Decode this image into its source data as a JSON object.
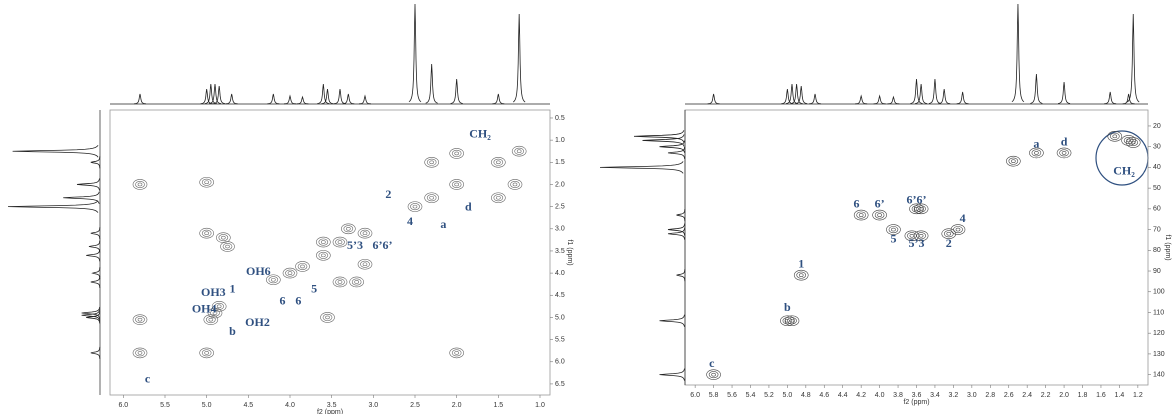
{
  "chart_data": [
    {
      "type": "contour",
      "x_label": "f2 (ppm)",
      "y_label": "f1 (ppm)",
      "xlim": [
        6.16,
        0.88
      ],
      "xticks": [
        {
          "value": 6,
          "label": "6.0"
        },
        5.5,
        {
          "value": 5,
          "label": "5.0"
        },
        4.5,
        {
          "value": 4,
          "label": "4.0"
        },
        3.5,
        {
          "value": 3,
          "label": "3.0"
        },
        2.5,
        {
          "value": 2,
          "label": "2.0"
        },
        1.5,
        {
          "value": 1,
          "label": "1.0"
        }
      ],
      "ylim": [
        0.32,
        6.75
      ],
      "yticks": [
        0.5,
        {
          "value": 1,
          "label": "1.0"
        },
        1.5,
        {
          "value": 2,
          "label": "2.0"
        },
        2.5,
        {
          "value": 3,
          "label": "3.0"
        },
        3.5,
        {
          "value": 4,
          "label": "4.0"
        },
        4.5,
        {
          "value": 5,
          "label": "5.0"
        },
        5.5,
        {
          "value": 6,
          "label": "6.0"
        },
        6.5
      ],
      "peak_color": "#666666",
      "label_color": "#2f5080",
      "peaks": {
        "x": [
          5.8,
          5.8,
          5.8,
          5.0,
          5.0,
          4.95,
          4.9,
          4.85,
          4.2,
          4.0,
          3.85,
          3.6,
          3.4,
          3.1,
          2.5,
          2.3,
          2.0,
          1.5,
          1.25,
          2.3,
          2.0,
          1.3,
          1.5,
          4.8,
          4.75,
          5.0,
          3.1,
          3.2,
          3.4,
          3.55,
          2.0,
          3.3,
          3.6
        ],
        "y": [
          2.0,
          5.05,
          5.8,
          1.95,
          5.8,
          5.05,
          4.9,
          4.75,
          4.15,
          4.0,
          3.85,
          3.6,
          3.3,
          3.1,
          2.5,
          2.3,
          2.0,
          1.5,
          1.25,
          1.5,
          1.3,
          2.0,
          2.3,
          3.2,
          3.4,
          3.1,
          3.8,
          4.2,
          4.2,
          5.0,
          5.8,
          3.0,
          3.3
        ]
      },
      "annotations": [
        {
          "text": "CH₂",
          "x": 1.72,
          "y": 0.88
        },
        {
          "text": "a",
          "x": 2.16,
          "y": 2.92
        },
        {
          "text": "d",
          "x": 1.86,
          "y": 2.53
        },
        {
          "text": "2",
          "x": 2.82,
          "y": 2.24
        },
        {
          "text": "4",
          "x": 2.56,
          "y": 2.85
        },
        {
          "text": "5’3",
          "x": 3.22,
          "y": 3.39
        },
        {
          "text": "6’6’",
          "x": 2.89,
          "y": 3.39
        },
        {
          "text": "OH6",
          "x": 4.38,
          "y": 3.98
        },
        {
          "text": "5",
          "x": 3.71,
          "y": 4.38
        },
        {
          "text": "6",
          "x": 4.09,
          "y": 4.65
        },
        {
          "text": "6",
          "x": 3.9,
          "y": 4.65
        },
        {
          "text": "1",
          "x": 4.69,
          "y": 4.38
        },
        {
          "text": "OH3",
          "x": 4.92,
          "y": 4.45
        },
        {
          "text": "OH4",
          "x": 5.03,
          "y": 4.83
        },
        {
          "text": "OH2",
          "x": 4.39,
          "y": 5.13
        },
        {
          "text": "b",
          "x": 4.69,
          "y": 5.33
        },
        {
          "text": "c",
          "x": 5.71,
          "y": 6.41
        }
      ],
      "projection_top": {
        "x": [
          5.8,
          5.0,
          4.95,
          4.9,
          4.85,
          4.7,
          4.2,
          4.0,
          3.85,
          3.6,
          3.55,
          3.4,
          3.3,
          3.1,
          2.5,
          2.3,
          2.0,
          1.5,
          1.25
        ],
        "heights": [
          0.1,
          0.15,
          0.2,
          0.2,
          0.18,
          0.1,
          0.1,
          0.08,
          0.07,
          0.2,
          0.15,
          0.15,
          0.1,
          0.08,
          1.0,
          0.4,
          0.25,
          0.1,
          0.9
        ]
      },
      "projection_left": {
        "y": [
          1.25,
          1.5,
          2.0,
          2.3,
          2.5,
          3.1,
          3.4,
          3.6,
          4.0,
          4.2,
          4.9,
          4.95,
          5.0,
          5.8
        ],
        "heights": [
          0.95,
          0.1,
          0.25,
          0.4,
          1.0,
          0.1,
          0.12,
          0.15,
          0.08,
          0.1,
          0.2,
          0.2,
          0.15,
          0.1
        ]
      }
    },
    {
      "type": "contour",
      "x_label": "f2 (ppm)",
      "y_label": "f1 (ppm)",
      "xlim": [
        6.11,
        1.09
      ],
      "xticks": [
        {
          "value": 6,
          "label": "6.0"
        },
        5.8,
        5.6,
        5.4,
        5.2,
        {
          "value": 5,
          "label": "5.0"
        },
        4.8,
        4.6,
        4.4,
        4.2,
        {
          "value": 4,
          "label": "4.0"
        },
        3.8,
        3.6,
        3.4,
        3.2,
        {
          "value": 3,
          "label": "3.0"
        },
        2.8,
        2.6,
        2.4,
        2.2,
        {
          "value": 2,
          "label": "2.0"
        },
        1.8,
        1.6,
        1.4,
        1.2
      ],
      "ylim": [
        12.3,
        145
      ],
      "yticks": [
        20,
        30,
        40,
        50,
        60,
        70,
        80,
        90,
        100,
        110,
        120,
        130,
        140
      ],
      "peak_color": "#444444",
      "label_color": "#2f5080",
      "peaks": {
        "x": [
          1.3,
          1.25,
          1.45,
          2.3,
          2.0,
          2.55,
          4.2,
          4.0,
          3.85,
          3.6,
          3.55,
          3.65,
          3.55,
          3.25,
          3.15,
          4.85,
          5.0,
          4.95,
          5.8
        ],
        "y": [
          27,
          28,
          25,
          33,
          33,
          37,
          63,
          63,
          70,
          60,
          60,
          73,
          73,
          72,
          70,
          92,
          114,
          114,
          140
        ]
      },
      "annotations": [
        {
          "text": "a",
          "x": 2.3,
          "y": 29
        },
        {
          "text": "d",
          "x": 2.0,
          "y": 28
        },
        {
          "text": "CH₂",
          "x": 1.35,
          "y": 42
        },
        {
          "text": "6",
          "x": 4.25,
          "y": 58
        },
        {
          "text": "6’",
          "x": 4.0,
          "y": 58
        },
        {
          "text": "6’6’",
          "x": 3.6,
          "y": 56
        },
        {
          "text": "4",
          "x": 3.1,
          "y": 65
        },
        {
          "text": "5",
          "x": 3.85,
          "y": 75
        },
        {
          "text": "5’3",
          "x": 3.6,
          "y": 77
        },
        {
          "text": "2",
          "x": 3.25,
          "y": 77
        },
        {
          "text": "1",
          "x": 4.85,
          "y": 87
        },
        {
          "text": "b",
          "x": 5.0,
          "y": 108
        },
        {
          "text": "c",
          "x": 5.82,
          "y": 135
        }
      ],
      "projection_top": {
        "x": [
          5.8,
          5.0,
          4.95,
          4.9,
          4.85,
          4.7,
          4.2,
          4.0,
          3.85,
          3.6,
          3.55,
          3.4,
          3.3,
          3.1,
          2.5,
          2.3,
          2.0,
          1.5,
          1.3,
          1.25
        ],
        "heights": [
          0.1,
          0.15,
          0.2,
          0.2,
          0.18,
          0.1,
          0.08,
          0.08,
          0.07,
          0.25,
          0.2,
          0.25,
          0.15,
          0.12,
          1.0,
          0.3,
          0.22,
          0.12,
          0.1,
          0.9
        ]
      },
      "projection_left": {
        "y": [
          25,
          27,
          30,
          33,
          40,
          63,
          70,
          72,
          92,
          114,
          140
        ],
        "heights": [
          0.6,
          0.5,
          0.3,
          0.2,
          1.0,
          0.1,
          0.2,
          0.2,
          0.1,
          0.3,
          0.3
        ]
      }
    }
  ]
}
